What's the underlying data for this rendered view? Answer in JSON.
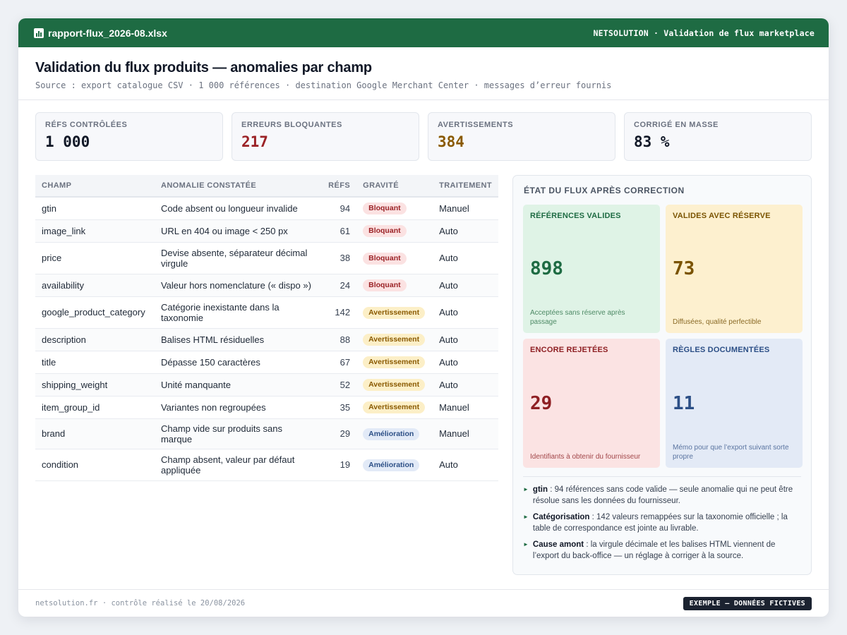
{
  "window": {
    "file_name": "rapport-flux_2026-08.xlsx",
    "app_label": "NETSOLUTION · Validation de flux marketplace"
  },
  "header": {
    "title": "Validation du flux produits — anomalies par champ",
    "subtitle": "Source : export catalogue CSV · 1 000 références · destination Google Merchant Center · messages d’erreur fournis"
  },
  "kpis": [
    {
      "label": "Réfs contrôlées",
      "value": "1 000"
    },
    {
      "label": "Erreurs bloquantes",
      "value": "217"
    },
    {
      "label": "Avertissements",
      "value": "384"
    },
    {
      "label": "Corrigé en masse",
      "value": "83 %"
    }
  ],
  "table": {
    "headers": {
      "field": "Champ",
      "anomaly": "Anomalie constatée",
      "refs": "Réfs",
      "severity": "Gravité",
      "treatment": "Traitement"
    },
    "rows": [
      {
        "field": "gtin",
        "anomaly": "Code absent ou longueur invalide",
        "refs": "94",
        "severity": "Bloquant",
        "treatment": "Manuel"
      },
      {
        "field": "image_link",
        "anomaly": "URL en 404 ou image < 250 px",
        "refs": "61",
        "severity": "Bloquant",
        "treatment": "Auto"
      },
      {
        "field": "price",
        "anomaly": "Devise absente, séparateur décimal virgule",
        "refs": "38",
        "severity": "Bloquant",
        "treatment": "Auto"
      },
      {
        "field": "availability",
        "anomaly": "Valeur hors nomenclature (« dispo »)",
        "refs": "24",
        "severity": "Bloquant",
        "treatment": "Auto"
      },
      {
        "field": "google_product_category",
        "anomaly": "Catégorie inexistante dans la taxonomie",
        "refs": "142",
        "severity": "Avertissement",
        "treatment": "Auto"
      },
      {
        "field": "description",
        "anomaly": "Balises HTML résiduelles",
        "refs": "88",
        "severity": "Avertissement",
        "treatment": "Auto"
      },
      {
        "field": "title",
        "anomaly": "Dépasse 150 caractères",
        "refs": "67",
        "severity": "Avertissement",
        "treatment": "Auto"
      },
      {
        "field": "shipping_weight",
        "anomaly": "Unité manquante",
        "refs": "52",
        "severity": "Avertissement",
        "treatment": "Auto"
      },
      {
        "field": "item_group_id",
        "anomaly": "Variantes non regroupées",
        "refs": "35",
        "severity": "Avertissement",
        "treatment": "Manuel"
      },
      {
        "field": "brand",
        "anomaly": "Champ vide sur produits sans marque",
        "refs": "29",
        "severity": "Amélioration",
        "treatment": "Manuel"
      },
      {
        "field": "condition",
        "anomaly": "Champ absent, valeur par défaut appliquée",
        "refs": "19",
        "severity": "Amélioration",
        "treatment": "Auto"
      }
    ]
  },
  "panel": {
    "title": "État du flux après correction",
    "cells": [
      {
        "label": "Références valides",
        "value": "898",
        "note": "Acceptées sans réserve après passage"
      },
      {
        "label": "Valides avec réserve",
        "value": "73",
        "note": "Diffusées, qualité perfectible"
      },
      {
        "label": "Encore rejetées",
        "value": "29",
        "note": "Identifiants à obtenir du fournisseur"
      },
      {
        "label": "Règles documentées",
        "value": "11",
        "note": "Mémo pour que l’export suivant sorte propre"
      }
    ],
    "notes": [
      {
        "strong": "gtin",
        "text": " : 94 références sans code valide — seule anomalie qui ne peut être résolue sans les données du fournisseur."
      },
      {
        "strong": "Catégorisation",
        "text": " : 142 valeurs remappées sur la taxonomie officielle ; la table de correspondance est jointe au livrable."
      },
      {
        "strong": "Cause amont",
        "text": " : la virgule décimale et les balises HTML viennent de l’export du back-office — un réglage à corriger à la source."
      }
    ]
  },
  "footer": {
    "left": "netsolution.fr · contrôle réalisé le 20/08/2026",
    "tag": "EXEMPLE — DONNÉES FICTIVES"
  }
}
